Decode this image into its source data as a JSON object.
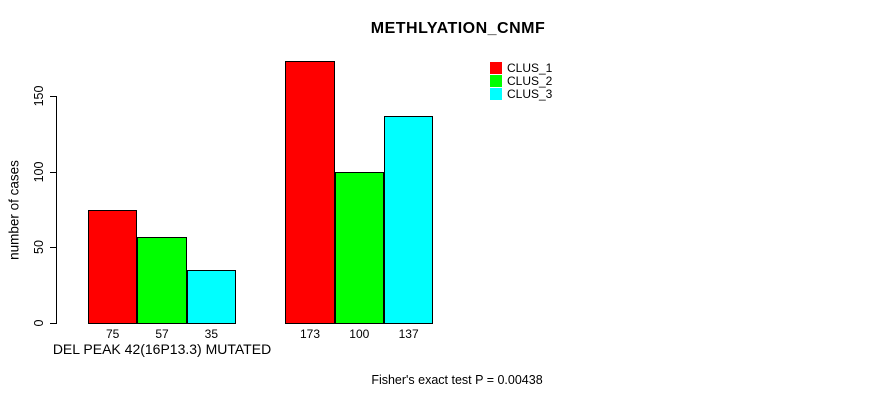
{
  "chart_data": {
    "type": "bar",
    "title": "METHLYATION_CNMF",
    "ylabel": "number of cases",
    "annotation": "Fisher's exact test P = 0.00438",
    "categories": [
      "DEL PEAK 42(16P13.3) MUTATED",
      ""
    ],
    "series": [
      {
        "name": "CLUS_1",
        "color": "#FF0000",
        "values": [
          75,
          173
        ]
      },
      {
        "name": "CLUS_2",
        "color": "#00FF00",
        "values": [
          57,
          100
        ]
      },
      {
        "name": "CLUS_3",
        "color": "#00FFFF",
        "values": [
          35,
          137
        ]
      }
    ],
    "bar_labels": [
      [
        "75",
        "57",
        "35"
      ],
      [
        "173",
        "100",
        "137"
      ]
    ],
    "yticks": [
      0,
      50,
      100,
      150
    ],
    "ylim": [
      0,
      173
    ],
    "grid": false,
    "legend_position": "top-right",
    "background": "#FFFFFF",
    "axis_color": "#000000"
  }
}
